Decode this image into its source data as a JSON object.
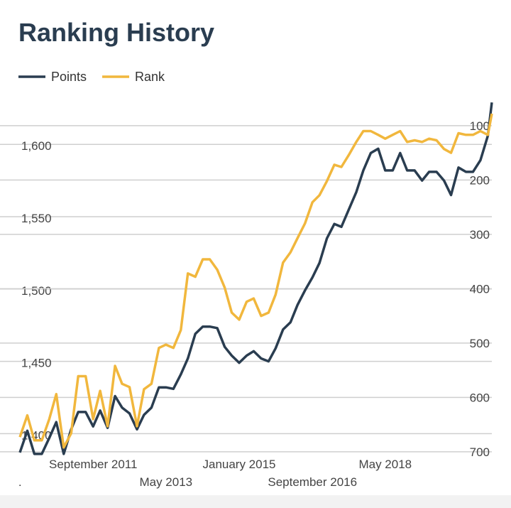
{
  "chart_data": {
    "type": "line",
    "title": "Ranking History",
    "x": [
      2010,
      2010.17,
      2010.33,
      2010.5,
      2010.67,
      2010.83,
      2011,
      2011.17,
      2011.33,
      2011.5,
      2011.67,
      2011.83,
      2012,
      2012.17,
      2012.33,
      2012.5,
      2012.67,
      2012.83,
      2013,
      2013.17,
      2013.33,
      2013.5,
      2013.67,
      2013.83,
      2014,
      2014.17,
      2014.33,
      2014.5,
      2014.67,
      2014.83,
      2015,
      2015.17,
      2015.33,
      2015.5,
      2015.67,
      2015.83,
      2016,
      2016.17,
      2016.33,
      2016.5,
      2016.67,
      2016.83,
      2017,
      2017.17,
      2017.33,
      2017.5,
      2017.67,
      2017.83,
      2018,
      2018.17,
      2018.33,
      2018.5,
      2018.67,
      2018.83,
      2019,
      2019.17,
      2019.33,
      2019.5,
      2019.67,
      2019.83,
      2020,
      2020.17,
      2020.33,
      2020.5,
      2020.67,
      2020.76
    ],
    "series": [
      {
        "name": "Points",
        "color": "#2a3d50",
        "values": [
          1387,
          1402,
          1386,
          1386,
          1397,
          1408,
          1386,
          1403,
          1415,
          1415,
          1405,
          1416,
          1404,
          1426,
          1418,
          1414,
          1403,
          1413,
          1418,
          1432,
          1432,
          1431,
          1441,
          1452,
          1469,
          1474,
          1474,
          1473,
          1460,
          1454,
          1449,
          1454,
          1457,
          1452,
          1450,
          1459,
          1472,
          1477,
          1489,
          1499,
          1508,
          1518,
          1535,
          1545,
          1543,
          1555,
          1567,
          1582,
          1594,
          1597,
          1582,
          1582,
          1594,
          1582,
          1582,
          1575,
          1581,
          1581,
          1575,
          1565,
          1584,
          1581,
          1581,
          1589,
          1606,
          1629
        ]
      },
      {
        "name": "Rank",
        "color": "#f1b73d",
        "axis": "y2",
        "values": [
          673,
          633,
          679,
          679,
          640,
          594,
          692,
          666,
          561,
          561,
          640,
          588,
          653,
          542,
          575,
          581,
          653,
          585,
          575,
          509,
          503,
          509,
          476,
          372,
          378,
          346,
          346,
          365,
          398,
          444,
          457,
          424,
          418,
          450,
          444,
          411,
          352,
          333,
          307,
          280,
          241,
          228,
          202,
          172,
          176,
          154,
          130,
          110,
          110,
          117,
          124,
          117,
          110,
          130,
          127,
          130,
          124,
          127,
          143,
          150,
          114,
          117,
          117,
          110,
          117,
          78
        ]
      }
    ],
    "xlim": [
      2010,
      2020.76
    ],
    "xticks": [
      {
        "value": 2011.67,
        "label": "September 2011"
      },
      {
        "value": 2013.33,
        "label": "May 2013"
      },
      {
        "value": 2015,
        "label": "January 2015"
      },
      {
        "value": 2016.67,
        "label": "September 2016"
      },
      {
        "value": 2018.33,
        "label": "May 2018"
      }
    ],
    "ylim": [
      1383,
      1634
    ],
    "yticks": [
      {
        "value": 1400,
        "label": "1,400"
      },
      {
        "value": 1450,
        "label": "1,450"
      },
      {
        "value": 1500,
        "label": "1,500"
      },
      {
        "value": 1550,
        "label": "1,550"
      },
      {
        "value": 1600,
        "label": "1,600"
      }
    ],
    "y2lim": [
      44,
      712
    ],
    "y2_reversed": true,
    "y2ticks": [
      100,
      200,
      300,
      400,
      500,
      600,
      700
    ],
    "grid": true,
    "legend": "top-left",
    "footnote": "."
  }
}
